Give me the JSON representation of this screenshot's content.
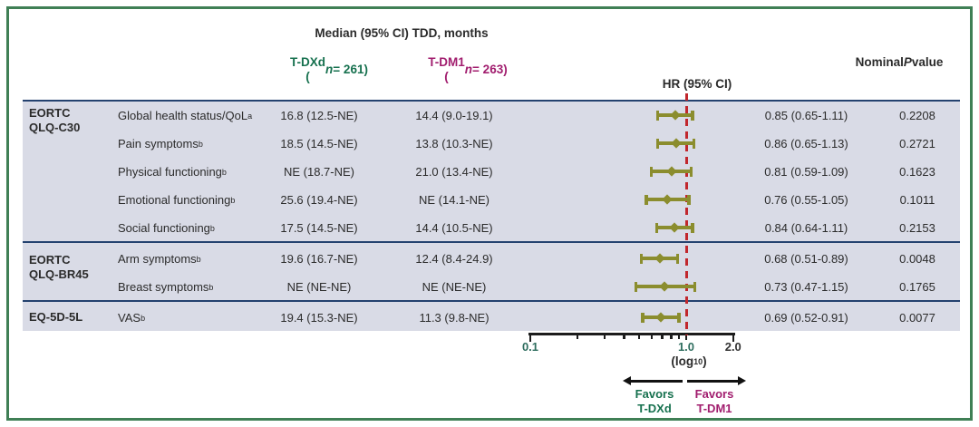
{
  "title": "Median (95% CI) TDD, months",
  "columns": {
    "tdxd_name": "T-DXd",
    "tdxd_n": "(*n* = 261)",
    "tdm1_name": "T-DM1",
    "tdm1_n": "(*n* = 263)",
    "hr_header": "HR (95% CI)",
    "p_header": "Nominal\n*P* value"
  },
  "groups": [
    {
      "label": "EORTC\nQLQ-C30"
    },
    {
      "label": "EORTC\nQLQ-BR45"
    },
    {
      "label": "EQ-5D-5L"
    }
  ],
  "rows": [
    {
      "measure": "Global health status/QoL^a",
      "tdxd": "16.8 (12.5-NE)",
      "tdm1": "14.4 (9.0-19.1)",
      "hr": "0.85 (0.65-1.11)",
      "p": "0.2208"
    },
    {
      "measure": "Pain symptoms^b",
      "tdxd": "18.5 (14.5-NE)",
      "tdm1": "13.8 (10.3-NE)",
      "hr": "0.86 (0.65-1.13)",
      "p": "0.2721"
    },
    {
      "measure": "Physical functioning^b",
      "tdxd": "NE (18.7-NE)",
      "tdm1": "21.0 (13.4-NE)",
      "hr": "0.81 (0.59-1.09)",
      "p": "0.1623"
    },
    {
      "measure": "Emotional functioning^b",
      "tdxd": "25.6 (19.4-NE)",
      "tdm1": "NE (14.1-NE)",
      "hr": "0.76 (0.55-1.05)",
      "p": "0.1011"
    },
    {
      "measure": "Social functioning^b",
      "tdxd": "17.5 (14.5-NE)",
      "tdm1": "14.4 (10.5-NE)",
      "hr": "0.84 (0.64-1.11)",
      "p": "0.2153"
    },
    {
      "measure": "Arm symptoms^b",
      "tdxd": "19.6 (16.7-NE)",
      "tdm1": "12.4 (8.4-24.9)",
      "hr": "0.68 (0.51-0.89)",
      "p": "0.0048"
    },
    {
      "measure": "Breast symptoms^b",
      "tdxd": "NE (NE-NE)",
      "tdm1": "NE (NE-NE)",
      "hr": "0.73 (0.47-1.15)",
      "p": "0.1765"
    },
    {
      "measure": "VAS^b",
      "tdxd": "19.4 (15.3-NE)",
      "tdm1": "11.3 (9.8-NE)",
      "hr": "0.69 (0.52-0.91)",
      "p": "0.0077"
    }
  ],
  "chart_data": {
    "type": "forest",
    "x_scale": "log10",
    "x_label": "(log~10~)",
    "xlim": [
      0.1,
      2.0
    ],
    "ref_line": 1.0,
    "x_ticks": [
      {
        "v": 0.1,
        "label": "0.1",
        "color": "teal"
      },
      {
        "v": 1.0,
        "label": "1.0",
        "color": "teal"
      },
      {
        "v": 2.0,
        "label": "2.0",
        "color": "dark"
      }
    ],
    "minor_ticks": [
      0.2,
      0.3,
      0.4,
      0.5,
      0.6,
      0.7,
      0.8,
      0.9
    ],
    "rows": [
      {
        "name": "Global health status/QoL",
        "hr": 0.85,
        "lo": 0.65,
        "hi": 1.11
      },
      {
        "name": "Pain symptoms",
        "hr": 0.86,
        "lo": 0.65,
        "hi": 1.13
      },
      {
        "name": "Physical functioning",
        "hr": 0.81,
        "lo": 0.59,
        "hi": 1.09
      },
      {
        "name": "Emotional functioning",
        "hr": 0.76,
        "lo": 0.55,
        "hi": 1.05
      },
      {
        "name": "Social functioning",
        "hr": 0.84,
        "lo": 0.64,
        "hi": 1.11
      },
      {
        "name": "Arm symptoms",
        "hr": 0.68,
        "lo": 0.51,
        "hi": 0.89
      },
      {
        "name": "Breast symptoms",
        "hr": 0.73,
        "lo": 0.47,
        "hi": 1.15
      },
      {
        "name": "VAS",
        "hr": 0.69,
        "lo": 0.52,
        "hi": 0.91
      }
    ],
    "favors_left": "Favors\nT-DXd",
    "favors_right": "Favors\nT-DM1"
  },
  "colors": {
    "tdxd_green": "#17714f",
    "tdm1_magenta": "#a11d6e",
    "navy_rule": "#24426f",
    "row_band": "#d9dbe6",
    "marker_olive": "#8b8d2e",
    "ref_line_red": "#c1272d",
    "border_green": "#3f7f55",
    "axis_tick_teal": "#2f6e5f"
  }
}
